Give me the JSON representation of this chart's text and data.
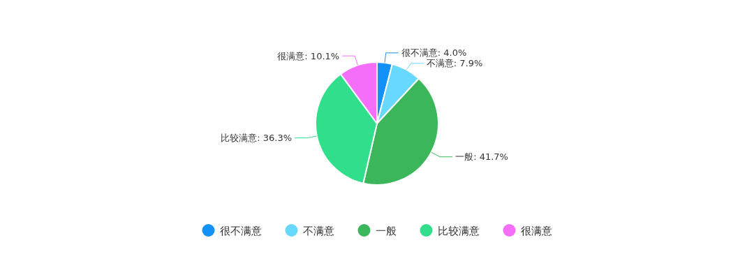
{
  "chart_data": {
    "type": "pie",
    "categories": [
      "很不满意",
      "不满意",
      "一般",
      "比较满意",
      "很满意"
    ],
    "values": [
      4.0,
      7.9,
      41.7,
      36.3,
      10.1
    ],
    "value_labels": [
      "很不满意: 4.0%",
      "不满意: 7.9%",
      "一般: 41.7%",
      "比较满意: 36.3%",
      "很满意: 10.1%"
    ],
    "colors": [
      "#1491f9",
      "#68d8fe",
      "#3cb65a",
      "#31de8c",
      "#f56ef9"
    ],
    "legend": "bottom"
  }
}
